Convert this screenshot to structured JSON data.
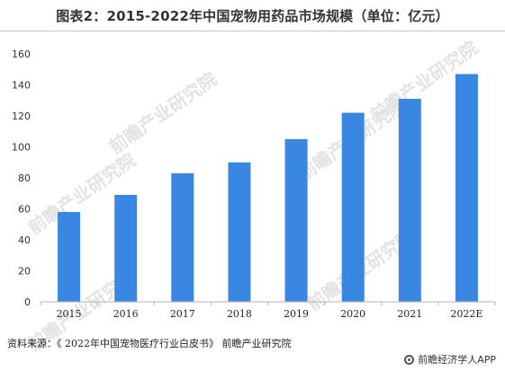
{
  "title": "图表2：2015-2022年中国宠物用药品市场规模（单位：亿元）",
  "chart_data": {
    "type": "bar",
    "categories": [
      "2015",
      "2016",
      "2017",
      "2018",
      "2019",
      "2020",
      "2021",
      "2022E"
    ],
    "values": [
      58,
      69,
      83,
      90,
      105,
      122,
      131,
      147
    ],
    "title": "2015-2022年中国宠物用药品市场规模（单位：亿元）",
    "xlabel": "",
    "ylabel": "",
    "ylim": [
      0,
      160
    ],
    "yticks": [
      0,
      20,
      40,
      60,
      80,
      100,
      120,
      140,
      160
    ],
    "grid": false,
    "legend": "none",
    "bar_color": "#3a87e3"
  },
  "watermark": "前瞻产业研究院",
  "footer": {
    "source": "资料来源：《 2022年中国宠物医疗行业白皮书》 前瞻产业研究院",
    "brand": "前瞻经济学人APP"
  }
}
